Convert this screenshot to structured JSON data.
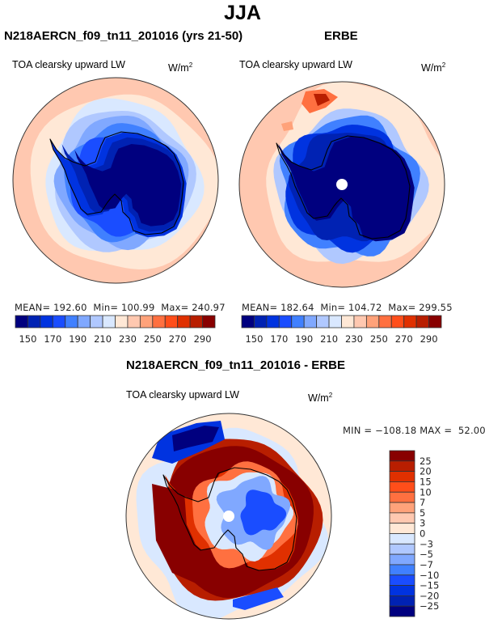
{
  "figure": {
    "title": "JJA"
  },
  "chart_data": [
    {
      "type": "heatmap",
      "projection": "south-polar-stereographic",
      "title": "N218AERCN_f09_tn11_201016 (yrs 21-50)",
      "left_label": "TOA clearsky upward LW",
      "units": "W/m",
      "units_sup": "2",
      "stats": {
        "mean_label": "MEAN=",
        "mean": "192.60",
        "min_label": "Min=",
        "min": "100.99",
        "max_label": "Max=",
        "max": "240.97"
      },
      "colorbar": {
        "orientation": "horizontal",
        "levels": [
          150,
          160,
          170,
          180,
          190,
          200,
          210,
          220,
          230,
          240,
          250,
          260,
          270,
          280,
          290
        ],
        "tick_labels": [
          "150",
          "170",
          "190",
          "210",
          "230",
          "250",
          "270",
          "290"
        ],
        "colors": [
          "#00007f",
          "#0022b3",
          "#0033e0",
          "#1a4dff",
          "#4080ff",
          "#80a8ff",
          "#b0c8ff",
          "#d9e8ff",
          "#ffe8d6",
          "#ffc8b0",
          "#ffa27a",
          "#ff7040",
          "#ff4e1a",
          "#e03000",
          "#b81e00",
          "#880000"
        ]
      },
      "field_description": "Low values (<150) over Antarctic continent interior, 170-220 over surrounding ocean, 230-250 toward the outer edge"
    },
    {
      "type": "heatmap",
      "projection": "south-polar-stereographic",
      "title": "ERBE",
      "left_label": "TOA clearsky upward LW",
      "units": "W/m",
      "units_sup": "2",
      "stats": {
        "mean_label": "MEAN=",
        "mean": "182.64",
        "min_label": "Min=",
        "min": "104.72",
        "max_label": "Max=",
        "max": "299.55"
      },
      "colorbar": {
        "orientation": "horizontal",
        "levels": [
          150,
          160,
          170,
          180,
          190,
          200,
          210,
          220,
          230,
          240,
          250,
          260,
          270,
          280,
          290
        ],
        "tick_labels": [
          "150",
          "170",
          "190",
          "210",
          "230",
          "250",
          "270",
          "290"
        ],
        "colors": [
          "#00007f",
          "#0022b3",
          "#0033e0",
          "#1a4dff",
          "#4080ff",
          "#80a8ff",
          "#b0c8ff",
          "#d9e8ff",
          "#ffe8d6",
          "#ffc8b0",
          "#ffa27a",
          "#ff7040",
          "#ff4e1a",
          "#e03000",
          "#b81e00",
          "#880000"
        ]
      },
      "field_description": "Values <150 over continent and nearby ocean, pole missing (white dot), high values (>270) patch near Weddell Sea/peninsula"
    },
    {
      "type": "heatmap",
      "projection": "south-polar-stereographic",
      "title": "N218AERCN_f09_tn11_201016 - ERBE",
      "left_label": "TOA clearsky upward LW",
      "units": "W/m",
      "units_sup": "2",
      "stats": {
        "min_label": "MIN =",
        "min": "−108.18",
        "max_label": "MAX =",
        "max": "52.00"
      },
      "colorbar": {
        "orientation": "vertical",
        "levels": [
          -25,
          -20,
          -15,
          -10,
          -7,
          -5,
          -3,
          0,
          3,
          5,
          7,
          10,
          15,
          20,
          25
        ],
        "tick_labels": [
          "25",
          "20",
          "15",
          "10",
          "7",
          "5",
          "3",
          "0",
          "−3",
          "−5",
          "−7",
          "−10",
          "−15",
          "−20",
          "−25"
        ],
        "colors": [
          "#00007f",
          "#0022b3",
          "#0033e0",
          "#1a4dff",
          "#4080ff",
          "#80a8ff",
          "#b0c8ff",
          "#d9e8ff",
          "#ffe8d6",
          "#ffc8b0",
          "#ffa27a",
          "#ff7040",
          "#ff4e1a",
          "#e03000",
          "#b81e00",
          "#880000"
        ]
      },
      "field_description": "Strong positive differences (>25) in ring around continent and over West Antarctica; negative differences over East Antarctic plateau and near Weddell Sea sector"
    }
  ]
}
